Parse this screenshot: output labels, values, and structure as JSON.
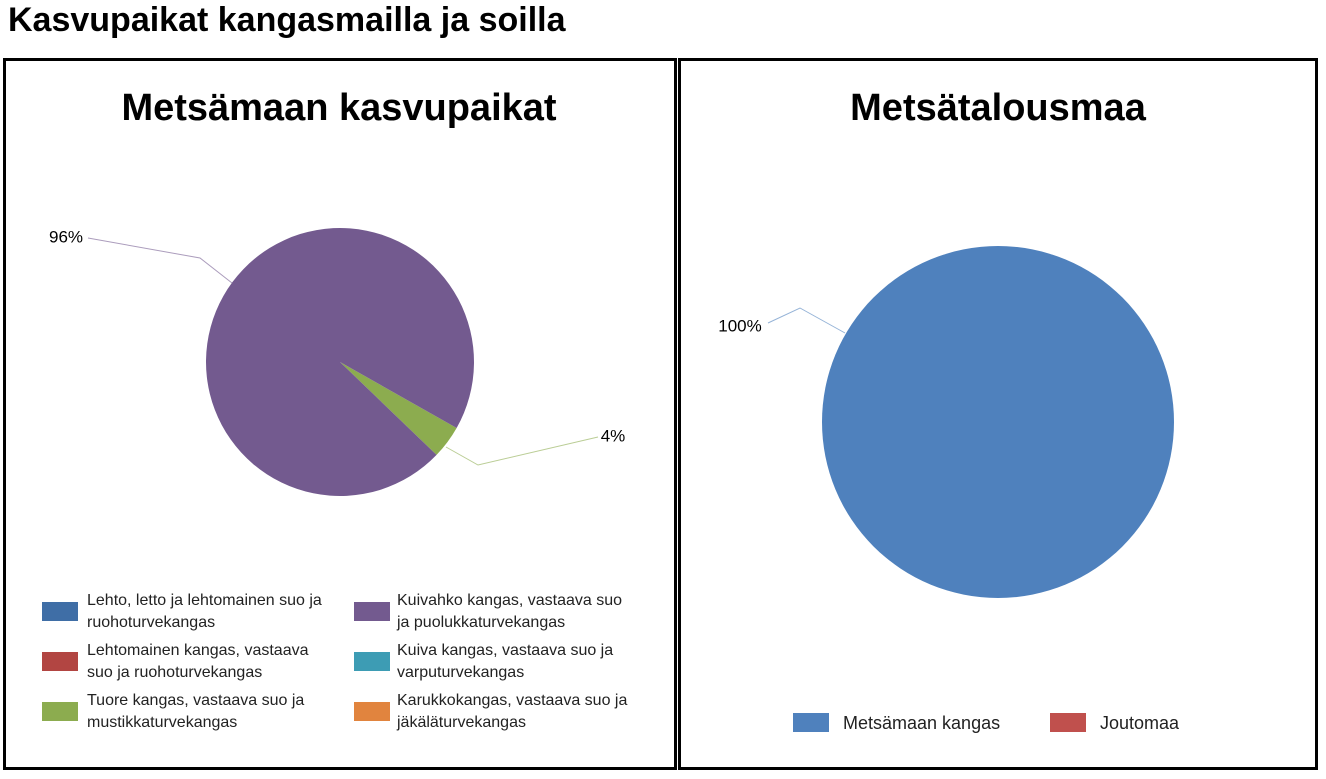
{
  "title": "Kasvupaikat kangasmailla ja soilla",
  "chart_data": [
    {
      "type": "pie",
      "title": "Metsämaan kasvupaikat",
      "categories": [
        "Lehto, letto ja lehtomainen suo ja ruohoturvekangas",
        "Lehtomainen kangas, vastaava suo ja ruohoturvekangas",
        "Tuore kangas, vastaava suo ja mustikkaturvekangas",
        "Kuivahko kangas, vastaava suo ja puolukkaturvekangas",
        "Kuiva kangas, vastaava suo ja varputurvekangas",
        "Karukkokangas, vastaava suo ja jäkäläturvekangas"
      ],
      "values": [
        0,
        0,
        4,
        96,
        0,
        0
      ],
      "value_labels": [
        null,
        null,
        "4%",
        "96%",
        null,
        null
      ],
      "colors": [
        "#3f6ea6",
        "#b24542",
        "#8cac4f",
        "#735a8f",
        "#3d9cb4",
        "#e1843e"
      ],
      "legend": "bottom"
    },
    {
      "type": "pie",
      "title": "Metsätalousmaa",
      "categories": [
        "Metsämaan kangas",
        "Joutomaa"
      ],
      "values": [
        100,
        0
      ],
      "value_labels": [
        "100%",
        null
      ],
      "colors": [
        "#4f81bd",
        "#c0504d"
      ],
      "legend": "bottom"
    }
  ]
}
